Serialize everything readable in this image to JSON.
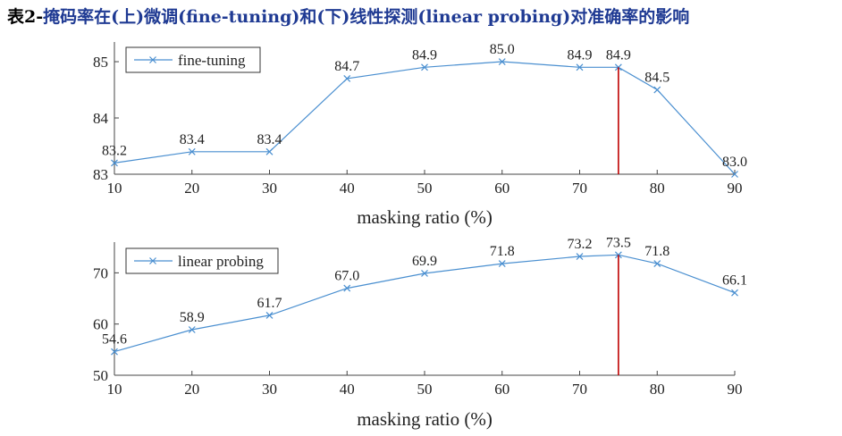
{
  "page_title": {
    "prefix": "表2-",
    "text": "掩码率在(上)微调(fine-tuning)和(下)线性探测(linear probing)对准确率的影响"
  },
  "colors": {
    "series": "#4a8fd0",
    "marker_line": "#c00000",
    "axis": "#444444"
  },
  "chart_data": [
    {
      "type": "line",
      "x": [
        10,
        20,
        30,
        40,
        50,
        60,
        70,
        80,
        90
      ],
      "series": [
        {
          "name": "fine-tuning",
          "values": [
            83.2,
            83.4,
            83.4,
            84.7,
            84.9,
            85.0,
            84.9,
            84.5,
            83.0
          ]
        }
      ],
      "extra_points": [
        {
          "x": 75,
          "y": 84.9,
          "label": "84.9"
        }
      ],
      "data_labels": [
        "83.2",
        "83.4",
        "83.4",
        "84.7",
        "84.9",
        "85.0",
        "84.9",
        "84.5",
        "83.0"
      ],
      "xlabel": "masking ratio (%)",
      "ylabel": "",
      "xlim": [
        10,
        90
      ],
      "ylim": [
        83,
        85.35
      ],
      "xticks": [
        10,
        20,
        30,
        40,
        50,
        60,
        70,
        80,
        90
      ],
      "yticks": [
        83,
        84,
        85
      ],
      "vline_x": 75,
      "legend_position": "top-left",
      "grid": false
    },
    {
      "type": "line",
      "x": [
        10,
        20,
        30,
        40,
        50,
        60,
        70,
        80,
        90
      ],
      "series": [
        {
          "name": "linear probing",
          "values": [
            54.6,
            58.9,
            61.7,
            67.0,
            69.9,
            71.8,
            73.2,
            71.8,
            66.1
          ]
        }
      ],
      "extra_points": [
        {
          "x": 75,
          "y": 73.5,
          "label": "73.5"
        }
      ],
      "data_labels": [
        "54.6",
        "58.9",
        "61.7",
        "67.0",
        "69.9",
        "71.8",
        "73.2",
        "71.8",
        "66.1"
      ],
      "xlabel": "masking ratio (%)",
      "ylabel": "",
      "xlim": [
        10,
        90
      ],
      "ylim": [
        50,
        76
      ],
      "xticks": [
        10,
        20,
        30,
        40,
        50,
        60,
        70,
        80,
        90
      ],
      "yticks": [
        50,
        60,
        70
      ],
      "vline_x": 75,
      "legend_position": "top-left",
      "grid": false
    }
  ]
}
